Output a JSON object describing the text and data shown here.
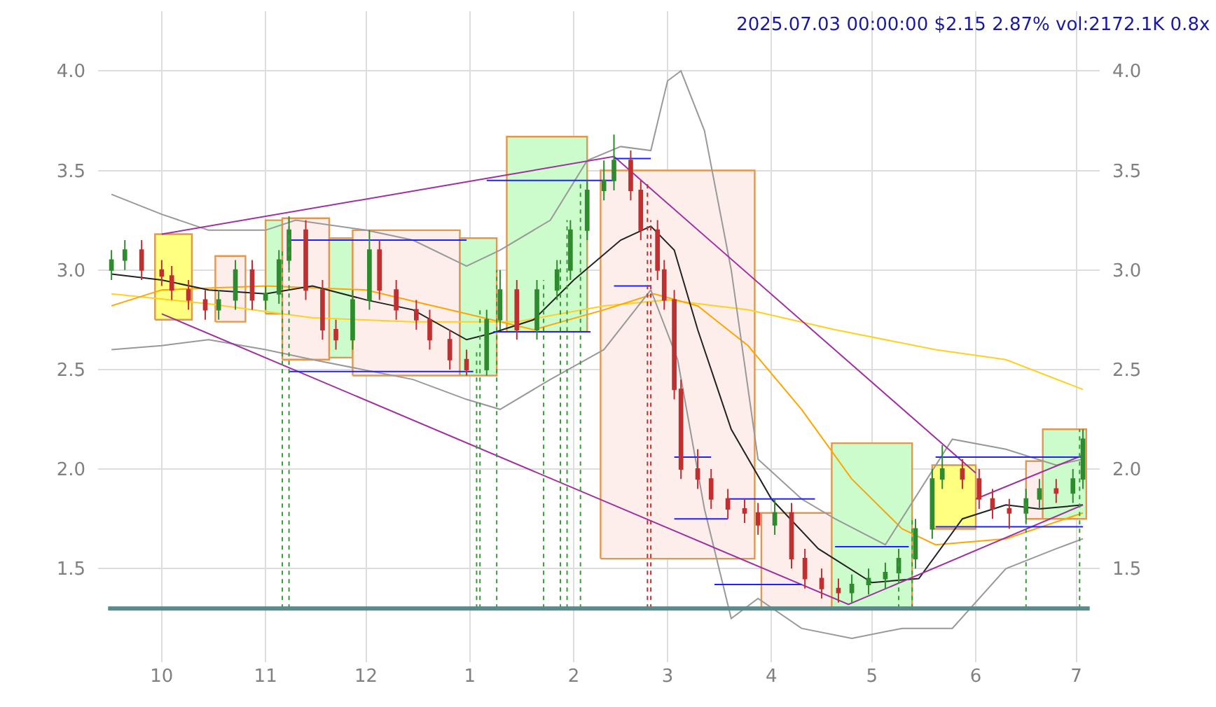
{
  "chart_data": {
    "type": "candlestick",
    "title": "2025.07.03 00:00:00 $2.15 2.87% vol:2172.1K 0.8x",
    "xlim": [
      "2024-09-12",
      "2025-07-08"
    ],
    "xticks": [
      {
        "value": "2024-10-01",
        "label": "10"
      },
      {
        "value": "2024-11-01",
        "label": "11"
      },
      {
        "value": "2024-12-01",
        "label": "12"
      },
      {
        "value": "2025-01-01",
        "label": "1"
      },
      {
        "value": "2025-02-01",
        "label": "2"
      },
      {
        "value": "2025-03-01",
        "label": "3"
      },
      {
        "value": "2025-04-01",
        "label": "4"
      },
      {
        "value": "2025-05-01",
        "label": "5"
      },
      {
        "value": "2025-06-01",
        "label": "6"
      },
      {
        "value": "2025-07-01",
        "label": "7"
      }
    ],
    "ylim": [
      1.03,
      4.3
    ],
    "yticks": [
      {
        "value": 1.5,
        "label": "1.5"
      },
      {
        "value": 2,
        "label": "2.0"
      },
      {
        "value": 2.5,
        "label": "2.5"
      },
      {
        "value": 3,
        "label": "3.0"
      },
      {
        "value": 3.5,
        "label": "3.5"
      },
      {
        "value": 4,
        "label": "4.0"
      }
    ],
    "y2lim": [
      1.03,
      4.3
    ],
    "y2ticks": [
      {
        "value": 1.5,
        "label": "1.5"
      },
      {
        "value": 2,
        "label": "2.0"
      },
      {
        "value": 2.5,
        "label": "2.5"
      },
      {
        "value": 3,
        "label": "3.0"
      },
      {
        "value": 3.5,
        "label": "3.5"
      },
      {
        "value": 4,
        "label": "4.0"
      }
    ],
    "grid": true,
    "series": [
      {
        "type": "area",
        "color": "#ffff80",
        "x": [
          "2024-09-29",
          "2024-09-29",
          "2024-10-10",
          "2024-10-10",
          "2024-09-29"
        ],
        "values": [
          2.75,
          3.18,
          3.18,
          2.75,
          2.75
        ]
      },
      {
        "type": "area",
        "color": "#fdeeec",
        "x": [
          "2024-10-17",
          "2024-10-17",
          "2024-10-26",
          "2024-10-26",
          "2024-10-17"
        ],
        "values": [
          2.74,
          3.07,
          3.07,
          2.74,
          2.74
        ]
      },
      {
        "type": "area",
        "color": "#ccfccc",
        "x": [
          "2024-11-01",
          "2024-11-01",
          "2024-11-06",
          "2024-11-06",
          "2024-11-01"
        ],
        "values": [
          2.78,
          3.25,
          3.25,
          2.78,
          2.78
        ]
      },
      {
        "type": "area",
        "color": "#fdeeec",
        "x": [
          "2024-11-06",
          "2024-11-06",
          "2024-11-20",
          "2024-11-20",
          "2024-11-06"
        ],
        "values": [
          2.55,
          3.26,
          3.26,
          2.55,
          2.55
        ]
      },
      {
        "type": "area",
        "color": "#ccfccc",
        "x": [
          "2024-11-20",
          "2024-11-20",
          "2024-11-27",
          "2024-11-27",
          "2024-11-20"
        ],
        "values": [
          2.56,
          3.16,
          3.16,
          2.56,
          2.56
        ]
      },
      {
        "type": "area",
        "color": "#fdeeec",
        "x": [
          "2024-11-27",
          "2024-11-27",
          "2024-12-29",
          "2024-12-29",
          "2024-11-27"
        ],
        "values": [
          2.47,
          3.2,
          3.2,
          2.47,
          2.47
        ]
      },
      {
        "type": "area",
        "color": "#ccfccc",
        "x": [
          "2024-12-29",
          "2024-12-29",
          "2025-01-09",
          "2025-01-09",
          "2024-12-29"
        ],
        "values": [
          2.47,
          3.16,
          3.16,
          2.47,
          2.47
        ]
      },
      {
        "type": "area",
        "color": "#ccfccc",
        "x": [
          "2025-01-12",
          "2025-01-12",
          "2025-02-05",
          "2025-02-05",
          "2025-01-12"
        ],
        "values": [
          2.69,
          3.67,
          3.67,
          2.69,
          2.69
        ]
      },
      {
        "type": "area",
        "color": "#fdeeec",
        "x": [
          "2025-02-09",
          "2025-02-09",
          "2025-03-27",
          "2025-03-27",
          "2025-02-09"
        ],
        "values": [
          1.55,
          3.5,
          3.5,
          1.55,
          1.55
        ]
      },
      {
        "type": "area",
        "color": "#fdeeec",
        "x": [
          "2025-03-29",
          "2025-03-29",
          "2025-04-23",
          "2025-04-23",
          "2025-03-29"
        ],
        "values": [
          1.3,
          1.78,
          1.78,
          1.3,
          1.3
        ]
      },
      {
        "type": "area",
        "color": "#ccfccc",
        "x": [
          "2025-04-19",
          "2025-04-19",
          "2025-05-13",
          "2025-05-13",
          "2025-04-19"
        ],
        "values": [
          1.3,
          2.13,
          2.13,
          1.3,
          1.3
        ]
      },
      {
        "type": "area",
        "color": "#ffff80",
        "x": [
          "2025-05-19",
          "2025-05-19",
          "2025-06-01",
          "2025-06-01",
          "2025-05-19"
        ],
        "values": [
          1.7,
          2.02,
          2.02,
          1.7,
          1.7
        ]
      },
      {
        "type": "area",
        "color": "#fdeeec",
        "x": [
          "2025-06-16",
          "2025-06-16",
          "2025-06-21",
          "2025-06-21",
          "2025-06-16"
        ],
        "values": [
          1.75,
          2.04,
          2.04,
          1.75,
          1.75
        ]
      },
      {
        "type": "area",
        "color": "#ccfccc",
        "x": [
          "2025-06-21",
          "2025-06-21",
          "2025-07-04",
          "2025-07-04",
          "2025-06-21"
        ],
        "values": [
          1.75,
          2.2,
          2.2,
          1.75,
          1.75
        ]
      },
      {
        "type": "line",
        "color": "#ffd020",
        "x": [
          "2024-09-16",
          "2024-10-15",
          "2024-11-15",
          "2024-12-15",
          "2025-01-15",
          "2025-02-10",
          "2025-03-01",
          "2025-03-25",
          "2025-04-20",
          "2025-05-20",
          "2025-06-10",
          "2025-07-03"
        ],
        "values": [
          2.88,
          2.83,
          2.76,
          2.74,
          2.74,
          2.82,
          2.85,
          2.8,
          2.7,
          2.6,
          2.55,
          2.4
        ]
      },
      {
        "type": "line",
        "color": "#ffa500",
        "x": [
          "2024-09-16",
          "2024-10-01",
          "2024-11-01",
          "2024-12-01",
          "2024-12-31",
          "2025-01-20",
          "2025-02-10",
          "2025-02-25",
          "2025-03-10",
          "2025-03-25",
          "2025-04-10",
          "2025-04-25",
          "2025-05-10",
          "2025-05-20",
          "2025-06-10",
          "2025-07-03"
        ],
        "values": [
          2.82,
          2.9,
          2.92,
          2.9,
          2.78,
          2.7,
          2.8,
          2.88,
          2.82,
          2.62,
          2.3,
          1.95,
          1.7,
          1.62,
          1.65,
          1.78
        ]
      },
      {
        "type": "line",
        "color": "#999999",
        "x": [
          "2024-09-16",
          "2024-10-01",
          "2024-10-15",
          "2024-11-01",
          "2024-11-10",
          "2024-12-01",
          "2024-12-15",
          "2024-12-31",
          "2025-01-10",
          "2025-01-25",
          "2025-02-05",
          "2025-02-15",
          "2025-02-24",
          "2025-03-01",
          "2025-03-05",
          "2025-03-12",
          "2025-03-20",
          "2025-03-28",
          "2025-04-10",
          "2025-04-20",
          "2025-05-05",
          "2025-05-25",
          "2025-06-10",
          "2025-06-25",
          "2025-07-03"
        ],
        "values": [
          3.38,
          3.28,
          3.2,
          3.2,
          3.25,
          3.2,
          3.15,
          3.02,
          3.1,
          3.25,
          3.55,
          3.62,
          3.6,
          3.95,
          4.0,
          3.7,
          3.0,
          2.05,
          1.85,
          1.75,
          1.62,
          2.15,
          2.1,
          2.02,
          2.05
        ]
      },
      {
        "type": "line",
        "color": "#999999",
        "x": [
          "2024-09-16",
          "2024-10-01",
          "2024-10-15",
          "2024-11-01",
          "2024-11-15",
          "2024-12-15",
          "2024-12-31",
          "2025-01-10",
          "2025-01-25",
          "2025-02-10",
          "2025-02-24",
          "2025-03-04",
          "2025-03-12",
          "2025-03-20",
          "2025-03-28",
          "2025-04-10",
          "2025-04-25",
          "2025-05-10",
          "2025-05-25",
          "2025-06-10",
          "2025-06-25",
          "2025-07-03"
        ],
        "values": [
          2.6,
          2.62,
          2.65,
          2.6,
          2.55,
          2.45,
          2.35,
          2.3,
          2.45,
          2.6,
          2.9,
          2.55,
          1.8,
          1.25,
          1.35,
          1.2,
          1.15,
          1.2,
          1.2,
          1.5,
          1.6,
          1.65
        ]
      },
      {
        "type": "line",
        "color": "#222222",
        "x": [
          "2024-09-16",
          "2024-10-01",
          "2024-10-15",
          "2024-11-01",
          "2024-11-15",
          "2024-12-01",
          "2024-12-15",
          "2024-12-31",
          "2025-01-07",
          "2025-01-20",
          "2025-02-01",
          "2025-02-15",
          "2025-02-24",
          "2025-03-03",
          "2025-03-10",
          "2025-03-20",
          "2025-04-01",
          "2025-04-15",
          "2025-05-01",
          "2025-05-15",
          "2025-05-28",
          "2025-06-10",
          "2025-06-20",
          "2025-07-03"
        ],
        "values": [
          2.98,
          2.95,
          2.9,
          2.88,
          2.92,
          2.85,
          2.8,
          2.65,
          2.68,
          2.75,
          2.95,
          3.15,
          3.22,
          3.1,
          2.7,
          2.2,
          1.85,
          1.6,
          1.43,
          1.45,
          1.75,
          1.82,
          1.8,
          1.82
        ]
      },
      {
        "type": "line",
        "color": "#a030a0",
        "x": [
          "2024-10-01",
          "2025-02-13",
          "2025-06-01"
        ],
        "values": [
          3.18,
          3.57,
          1.98
        ]
      },
      {
        "type": "line",
        "color": "#a030a0",
        "x": [
          "2024-10-01",
          "2025-04-24",
          "2025-07-03"
        ],
        "values": [
          2.78,
          1.32,
          1.82
        ]
      },
      {
        "type": "line",
        "color": "#a030a0",
        "x": [
          "2025-06-01",
          "2025-07-03"
        ],
        "values": [
          1.85,
          2.07
        ]
      },
      {
        "type": "line",
        "color": "#2020ff",
        "x": [
          "2024-11-08",
          "2024-12-31"
        ],
        "values": [
          3.15,
          3.15
        ]
      },
      {
        "type": "line",
        "color": "#2020ff",
        "x": [
          "2024-11-08",
          "2025-01-02"
        ],
        "values": [
          2.49,
          2.49
        ]
      },
      {
        "type": "line",
        "color": "#2020ff",
        "x": [
          "2025-01-06",
          "2025-02-13"
        ],
        "values": [
          3.45,
          3.45
        ]
      },
      {
        "type": "line",
        "color": "#2020ff",
        "x": [
          "2025-01-08",
          "2025-02-06"
        ],
        "values": [
          2.69,
          2.69
        ]
      },
      {
        "type": "line",
        "color": "#2020ff",
        "x": [
          "2025-02-13",
          "2025-02-24"
        ],
        "values": [
          3.56,
          3.56
        ]
      },
      {
        "type": "line",
        "color": "#2020ff",
        "x": [
          "2025-02-13",
          "2025-02-24"
        ],
        "values": [
          2.92,
          2.92
        ]
      },
      {
        "type": "line",
        "color": "#2020ff",
        "x": [
          "2025-03-03",
          "2025-03-14"
        ],
        "values": [
          2.06,
          2.06
        ]
      },
      {
        "type": "line",
        "color": "#2020ff",
        "x": [
          "2025-03-03",
          "2025-03-19"
        ],
        "values": [
          1.75,
          1.75
        ]
      },
      {
        "type": "line",
        "color": "#2020ff",
        "x": [
          "2025-03-19",
          "2025-04-14"
        ],
        "values": [
          1.85,
          1.85
        ]
      },
      {
        "type": "line",
        "color": "#2020ff",
        "x": [
          "2025-03-15",
          "2025-04-10"
        ],
        "values": [
          1.42,
          1.42
        ]
      },
      {
        "type": "line",
        "color": "#2020ff",
        "x": [
          "2025-04-20",
          "2025-05-12"
        ],
        "values": [
          1.61,
          1.61
        ]
      },
      {
        "type": "line",
        "color": "#2020ff",
        "x": [
          "2025-05-20",
          "2025-07-03"
        ],
        "values": [
          2.06,
          2.06
        ]
      },
      {
        "type": "line",
        "color": "#2020ff",
        "x": [
          "2025-05-20",
          "2025-07-03"
        ],
        "values": [
          1.71,
          1.71
        ]
      },
      {
        "colors": [
          "#2e8b2e",
          "#2e8b2e",
          "#c03030",
          "#c03030",
          "#c03030",
          "#c03030",
          "#c03030",
          "#2e8b2e",
          "#2e8b2e",
          "#c03030",
          "#2e8b2e",
          "#2e8b2e",
          "#2e8b2e",
          "#c03030",
          "#c03030",
          "#c03030",
          "#2e8b2e",
          "#2e8b2e",
          "#c03030",
          "#c03030",
          "#c03030",
          "#c03030",
          "#c03030",
          "#c03030",
          "#2e8b2e",
          "#2e8b2e",
          "#c03030",
          "#2e8b2e",
          "#2e8b2e",
          "#2e8b2e",
          "#2e8b2e",
          "#2e8b2e",
          "#2e8b2e",
          "#c03030",
          "#c03030",
          "#c03030",
          "#c03030",
          "#c03030",
          "#c03030",
          "#c03030",
          "#c03030",
          "#c03030",
          "#c03030",
          "#c03030",
          "#2e8b2e",
          "#c03030",
          "#c03030",
          "#c03030",
          "#c03030",
          "#2e8b2e",
          "#2e8b2e",
          "#2e8b2e",
          "#2e8b2e",
          "#2e8b2e",
          "#2e8b2e",
          "#2e8b2e",
          "#c03030",
          "#c03030",
          "#c03030",
          "#c03030",
          "#2e8b2e",
          "#2e8b2e",
          "#c03030",
          "#2e8b2e",
          "#2e8b2e"
        ],
        "x": [
          "2024-09-16",
          "2024-09-20",
          "2024-09-25",
          "2024-10-01",
          "2024-10-04",
          "2024-10-09",
          "2024-10-14",
          "2024-10-18",
          "2024-10-23",
          "2024-10-28",
          "2024-11-01",
          "2024-11-05",
          "2024-11-08",
          "2024-11-13",
          "2024-11-18",
          "2024-11-22",
          "2024-11-27",
          "2024-12-02",
          "2024-12-05",
          "2024-12-10",
          "2024-12-16",
          "2024-12-20",
          "2024-12-26",
          "2024-12-31",
          "2025-01-06",
          "2025-01-10",
          "2025-01-15",
          "2025-01-21",
          "2025-01-27",
          "2025-01-31",
          "2025-02-05",
          "2025-02-10",
          "2025-02-13",
          "2025-02-18",
          "2025-02-21",
          "2025-02-26",
          "2025-02-28",
          "2025-03-03",
          "2025-03-05",
          "2025-03-10",
          "2025-03-14",
          "2025-03-19",
          "2025-03-24",
          "2025-03-28",
          "2025-04-02",
          "2025-04-07",
          "2025-04-11",
          "2025-04-16",
          "2025-04-21",
          "2025-04-25",
          "2025-04-30",
          "2025-05-05",
          "2025-05-09",
          "2025-05-14",
          "2025-05-19",
          "2025-05-22",
          "2025-05-28",
          "2025-06-02",
          "2025-06-06",
          "2025-06-11",
          "2025-06-16",
          "2025-06-20",
          "2025-06-25",
          "2025-06-30",
          "2025-07-03"
        ],
        "ohlc": [
          [
            3.0,
            3.1,
            2.95,
            3.05
          ],
          [
            3.05,
            3.15,
            3.0,
            3.1
          ],
          [
            3.1,
            3.15,
            2.95,
            3.0
          ],
          [
            3.0,
            3.05,
            2.92,
            2.97
          ],
          [
            2.97,
            3.02,
            2.85,
            2.9
          ],
          [
            2.9,
            2.95,
            2.8,
            2.85
          ],
          [
            2.85,
            2.9,
            2.75,
            2.8
          ],
          [
            2.8,
            2.9,
            2.75,
            2.85
          ],
          [
            2.85,
            3.05,
            2.8,
            3.0
          ],
          [
            3.0,
            3.05,
            2.8,
            2.85
          ],
          [
            2.85,
            2.92,
            2.8,
            2.88
          ],
          [
            2.88,
            3.1,
            2.83,
            3.05
          ],
          [
            3.05,
            3.27,
            3.0,
            3.2
          ],
          [
            3.2,
            3.25,
            2.85,
            2.9
          ],
          [
            2.9,
            2.95,
            2.65,
            2.7
          ],
          [
            2.7,
            2.75,
            2.6,
            2.65
          ],
          [
            2.65,
            2.9,
            2.6,
            2.85
          ],
          [
            2.85,
            3.2,
            2.8,
            3.1
          ],
          [
            3.1,
            3.15,
            2.85,
            2.9
          ],
          [
            2.9,
            2.95,
            2.75,
            2.8
          ],
          [
            2.8,
            2.85,
            2.7,
            2.75
          ],
          [
            2.75,
            2.8,
            2.6,
            2.65
          ],
          [
            2.65,
            2.7,
            2.5,
            2.55
          ],
          [
            2.55,
            2.6,
            2.47,
            2.5
          ],
          [
            2.5,
            2.8,
            2.47,
            2.75
          ],
          [
            2.75,
            3.0,
            2.7,
            2.9
          ],
          [
            2.9,
            2.95,
            2.65,
            2.7
          ],
          [
            2.7,
            2.95,
            2.65,
            2.9
          ],
          [
            2.9,
            3.05,
            2.85,
            3.0
          ],
          [
            3.0,
            3.25,
            2.95,
            3.2
          ],
          [
            3.2,
            3.45,
            3.15,
            3.4
          ],
          [
            3.4,
            3.55,
            3.35,
            3.45
          ],
          [
            3.45,
            3.68,
            3.4,
            3.55
          ],
          [
            3.55,
            3.6,
            3.35,
            3.4
          ],
          [
            3.4,
            3.45,
            3.15,
            3.2
          ],
          [
            3.2,
            3.25,
            2.95,
            3.0
          ],
          [
            3.0,
            3.05,
            2.8,
            2.85
          ],
          [
            2.85,
            2.9,
            2.35,
            2.4
          ],
          [
            2.4,
            2.45,
            1.95,
            2.0
          ],
          [
            2.0,
            2.1,
            1.9,
            1.95
          ],
          [
            1.95,
            2.0,
            1.8,
            1.85
          ],
          [
            1.85,
            1.9,
            1.75,
            1.8
          ],
          [
            1.8,
            1.85,
            1.73,
            1.78
          ],
          [
            1.78,
            1.83,
            1.67,
            1.72
          ],
          [
            1.72,
            1.85,
            1.67,
            1.78
          ],
          [
            1.78,
            1.83,
            1.5,
            1.55
          ],
          [
            1.55,
            1.6,
            1.4,
            1.45
          ],
          [
            1.45,
            1.5,
            1.35,
            1.4
          ],
          [
            1.4,
            1.45,
            1.33,
            1.38
          ],
          [
            1.38,
            1.47,
            1.33,
            1.42
          ],
          [
            1.42,
            1.5,
            1.37,
            1.45
          ],
          [
            1.45,
            1.53,
            1.4,
            1.48
          ],
          [
            1.48,
            1.6,
            1.43,
            1.55
          ],
          [
            1.55,
            1.75,
            1.5,
            1.7
          ],
          [
            1.7,
            2.0,
            1.65,
            1.95
          ],
          [
            1.95,
            2.12,
            1.9,
            2.0
          ],
          [
            2.0,
            2.05,
            1.9,
            1.95
          ],
          [
            1.95,
            2.0,
            1.8,
            1.85
          ],
          [
            1.85,
            1.9,
            1.75,
            1.8
          ],
          [
            1.8,
            1.85,
            1.7,
            1.78
          ],
          [
            1.78,
            1.9,
            1.73,
            1.85
          ],
          [
            1.85,
            1.95,
            1.8,
            1.9
          ],
          [
            1.9,
            1.95,
            1.83,
            1.88
          ],
          [
            1.88,
            2.0,
            1.83,
            1.95
          ],
          [
            1.95,
            2.2,
            1.9,
            2.15
          ]
        ]
      }
    ],
    "ref_lines": [
      {
        "axis": "x",
        "value": "2024-11-06",
        "color": "#3a9a3a",
        "line_style": "dotted"
      },
      {
        "axis": "x",
        "value": "2024-11-08",
        "color": "#3a9a3a",
        "line_style": "dotted"
      },
      {
        "axis": "x",
        "value": "2025-01-03",
        "color": "#3a9a3a",
        "line_style": "dotted"
      },
      {
        "axis": "x",
        "value": "2025-01-04",
        "color": "#3a9a3a",
        "line_style": "dotted"
      },
      {
        "axis": "x",
        "value": "2025-01-09",
        "color": "#3a9a3a",
        "line_style": "dotted"
      },
      {
        "axis": "x",
        "value": "2025-01-23",
        "color": "#3a9a3a",
        "line_style": "dotted"
      },
      {
        "axis": "x",
        "value": "2025-01-28",
        "color": "#3a9a3a",
        "line_style": "dotted"
      },
      {
        "axis": "x",
        "value": "2025-01-30",
        "color": "#3a9a3a",
        "line_style": "dotted"
      },
      {
        "axis": "x",
        "value": "2025-02-03",
        "color": "#3a9a3a",
        "line_style": "dotted"
      },
      {
        "axis": "x",
        "value": "2025-02-23",
        "color": "#c03030",
        "line_style": "dotted"
      },
      {
        "axis": "x",
        "value": "2025-02-24",
        "color": "#c03030",
        "line_style": "dotted"
      },
      {
        "axis": "x",
        "value": "2025-05-09",
        "color": "#3a9a3a",
        "line_style": "dotted"
      },
      {
        "axis": "x",
        "value": "2025-05-13",
        "color": "#3a9a3a",
        "line_style": "dotted"
      },
      {
        "axis": "x",
        "value": "2025-06-16",
        "color": "#3a9a3a",
        "line_style": "dotted"
      },
      {
        "axis": "x",
        "value": "2025-07-02",
        "color": "#3a9a3a",
        "line_style": "dotted"
      },
      {
        "axis": "y",
        "value": 1.3,
        "color": "#5a8a8a",
        "line_style": "solid"
      }
    ]
  }
}
